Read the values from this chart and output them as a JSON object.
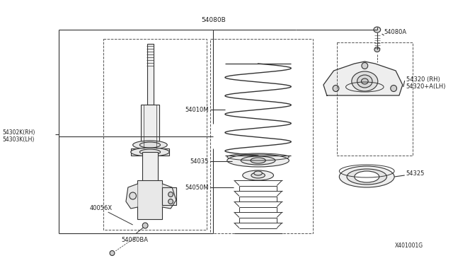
{
  "bg_color": "#ffffff",
  "line_color": "#333333",
  "dashed_color": "#555555",
  "text_color": "#222222",
  "watermark": "X401001G",
  "label_54080B": "54080B",
  "label_54080A": "54080A",
  "label_54320": "54320 (RH)\n54320+A(LH)",
  "label_54325": "54325",
  "label_54010M": "54010M",
  "label_54035": "54035",
  "label_54050M": "54050M",
  "label_54302K": "54302K (RH)\n54303K (LH)",
  "label_40056X": "40056X",
  "label_54080BA": "54080BA"
}
